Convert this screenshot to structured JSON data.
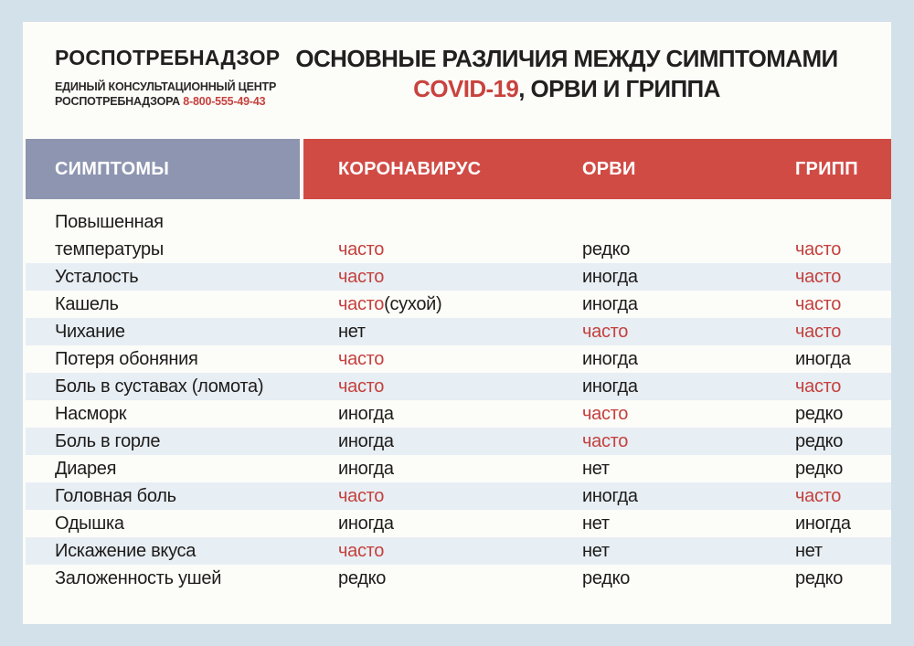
{
  "colors": {
    "page_background": "#d3e1ea",
    "card_background": "#fcfcf9",
    "symptoms_header_background": "#8e95b1",
    "virus_header_background": "#d14b45",
    "accent_red_text": "#c4413d",
    "ink": "#1e1c1a"
  },
  "logo": {
    "title": "РОСПОТРЕБНАДЗОР",
    "subtitle_line1": "ЕДИНЫЙ КОНСУЛЬТАЦИОННЫЙ ЦЕНТР",
    "subtitle_line2": "РОСПОТРЕБНАДЗОРА",
    "phone": "8-800-555-49-43"
  },
  "title": {
    "line1": "ОСНОВНЫЕ РАЗЛИЧИЯ МЕЖДУ СИМПТОМАМИ",
    "line2_accent": "COVID-19",
    "line2_rest": ", ОРВИ И ГРИППА"
  },
  "table": {
    "symptom_header": "СИМПТОМЫ",
    "columns": [
      "КОРОНАВИРУС",
      "ОРВИ",
      "ГРИПП"
    ],
    "rows": [
      {
        "symptom": "Повышенная\nтемпературы",
        "tall": true,
        "cells": [
          {
            "text": "часто",
            "accent": true
          },
          {
            "text": "редко",
            "accent": false
          },
          {
            "text": "часто",
            "accent": true
          }
        ]
      },
      {
        "symptom": "Усталость",
        "cells": [
          {
            "text": "часто",
            "accent": true
          },
          {
            "text": "иногда",
            "accent": false
          },
          {
            "text": "часто",
            "accent": true
          }
        ]
      },
      {
        "symptom": "Кашель",
        "cells": [
          {
            "text": "часто",
            "accent": true,
            "suffix": "(сухой)"
          },
          {
            "text": "иногда",
            "accent": false
          },
          {
            "text": "часто",
            "accent": true
          }
        ]
      },
      {
        "symptom": "Чихание",
        "cells": [
          {
            "text": "нет",
            "accent": false
          },
          {
            "text": "часто",
            "accent": true
          },
          {
            "text": "часто",
            "accent": true
          }
        ]
      },
      {
        "symptom": "Потеря обоняния",
        "cells": [
          {
            "text": "часто",
            "accent": true
          },
          {
            "text": "иногда",
            "accent": false
          },
          {
            "text": "иногда",
            "accent": false
          }
        ]
      },
      {
        "symptom": "Боль в суставах (ломота)",
        "cells": [
          {
            "text": "часто",
            "accent": true
          },
          {
            "text": "иногда",
            "accent": false
          },
          {
            "text": "часто",
            "accent": true
          }
        ]
      },
      {
        "symptom": "Насморк",
        "cells": [
          {
            "text": "иногда",
            "accent": false
          },
          {
            "text": "часто",
            "accent": true
          },
          {
            "text": "редко",
            "accent": false
          }
        ]
      },
      {
        "symptom": "Боль в горле",
        "cells": [
          {
            "text": "иногда",
            "accent": false
          },
          {
            "text": "часто",
            "accent": true
          },
          {
            "text": "редко",
            "accent": false
          }
        ]
      },
      {
        "symptom": "Диарея",
        "cells": [
          {
            "text": "иногда",
            "accent": false
          },
          {
            "text": "нет",
            "accent": false
          },
          {
            "text": "редко",
            "accent": false
          }
        ]
      },
      {
        "symptom": "Головная боль",
        "cells": [
          {
            "text": "часто",
            "accent": true
          },
          {
            "text": "иногда",
            "accent": false
          },
          {
            "text": "часто",
            "accent": true
          }
        ]
      },
      {
        "symptom": "Одышка",
        "cells": [
          {
            "text": "иногда",
            "accent": false
          },
          {
            "text": "нет",
            "accent": false
          },
          {
            "text": "иногда",
            "accent": false
          }
        ]
      },
      {
        "symptom": "Искажение вкуса",
        "cells": [
          {
            "text": "часто",
            "accent": true
          },
          {
            "text": "нет",
            "accent": false
          },
          {
            "text": "нет",
            "accent": false
          }
        ]
      },
      {
        "symptom": "Заложенность ушей",
        "cells": [
          {
            "text": "редко",
            "accent": false
          },
          {
            "text": "редко",
            "accent": false
          },
          {
            "text": "редко",
            "accent": false
          }
        ]
      }
    ]
  }
}
